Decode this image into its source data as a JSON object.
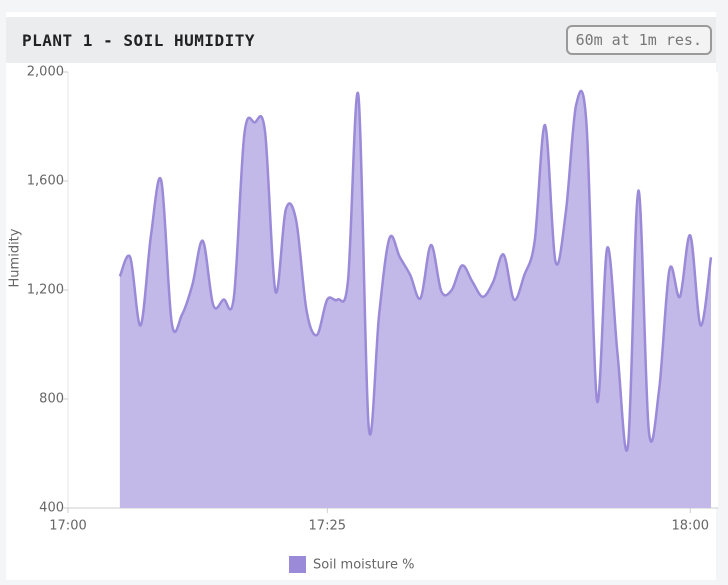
{
  "header": {
    "title": "PLANT 1 - SOIL HUMIDITY",
    "badge": "60m at 1m res."
  },
  "chart_data": {
    "type": "area",
    "y_label": "Humidity",
    "x": [
      "17:05",
      "17:06",
      "17:07",
      "17:08",
      "17:09",
      "17:10",
      "17:11",
      "17:12",
      "17:13",
      "17:14",
      "17:15",
      "17:16",
      "17:17",
      "17:18",
      "17:19",
      "17:20",
      "17:21",
      "17:22",
      "17:23",
      "17:24",
      "17:25",
      "17:26",
      "17:27",
      "17:28",
      "17:29",
      "17:30",
      "17:31",
      "17:32",
      "17:33",
      "17:34",
      "17:35",
      "17:36",
      "17:37",
      "17:38",
      "17:39",
      "17:40",
      "17:41",
      "17:42",
      "17:43",
      "17:44",
      "17:45",
      "17:46",
      "17:47",
      "17:48",
      "17:49",
      "17:50",
      "17:51",
      "17:52",
      "17:53",
      "17:54",
      "17:55",
      "17:56",
      "17:57",
      "17:58",
      "17:59",
      "18:00",
      "18:01",
      "18:02"
    ],
    "series": [
      {
        "name": "Soil moisture %",
        "color": "#9b8ad8",
        "fill": "#c3b9e8",
        "values": [
          1250,
          1320,
          1070,
          1400,
          1600,
          1080,
          1110,
          1220,
          1380,
          1145,
          1165,
          1175,
          1770,
          1815,
          1780,
          1195,
          1495,
          1455,
          1125,
          1035,
          1165,
          1165,
          1235,
          1915,
          695,
          1110,
          1390,
          1320,
          1255,
          1170,
          1365,
          1195,
          1200,
          1290,
          1230,
          1175,
          1230,
          1330,
          1165,
          1255,
          1380,
          1805,
          1305,
          1485,
          1880,
          1805,
          795,
          1355,
          960,
          630,
          1565,
          685,
          835,
          1275,
          1175,
          1400,
          1070,
          1320
        ]
      }
    ],
    "xlim": [
      "17:00",
      "18:02"
    ],
    "xticks": [
      "17:00",
      "17:25",
      "18:00"
    ],
    "ylim": [
      400,
      2000
    ],
    "yticks": [
      400,
      800,
      {
        "value": 1200,
        "label": "1,200"
      },
      {
        "value": 1600,
        "label": "1,600"
      },
      {
        "value": 2000,
        "label": "2,000"
      }
    ]
  }
}
